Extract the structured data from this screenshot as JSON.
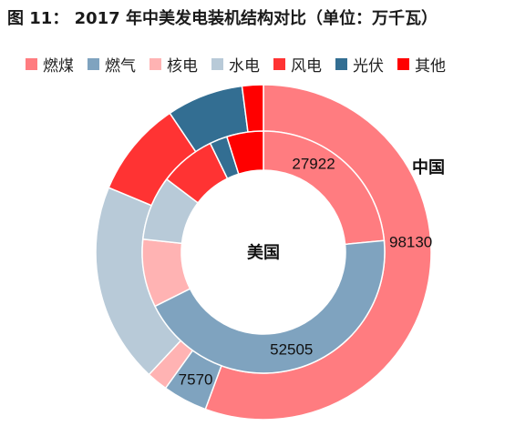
{
  "chart_data": {
    "type": "donut",
    "title": "图 11：  2017 年中美发电装机结构对比（单位：万千瓦）",
    "categories": [
      "燃煤",
      "燃气",
      "核电",
      "水电",
      "风电",
      "光伏",
      "其他"
    ],
    "colors": [
      "#ff7c80",
      "#7fa3bf",
      "#ffb3b3",
      "#b8cad8",
      "#ff3333",
      "#336e92",
      "#ff0000"
    ],
    "series": [
      {
        "name": "中国",
        "ring": "outer",
        "values": [
          98130,
          7570,
          3582,
          34119,
          16367,
          13025,
          3600
        ]
      },
      {
        "name": "美国",
        "ring": "inner",
        "values": [
          27922,
          52505,
          10800,
          10200,
          8900,
          2800,
          5800
        ]
      }
    ],
    "data_labels": [
      {
        "series": 1,
        "category": 0,
        "text": "27922"
      },
      {
        "series": 0,
        "category": 0,
        "text": "98130"
      },
      {
        "series": 1,
        "category": 1,
        "text": "52505"
      },
      {
        "series": 0,
        "category": 1,
        "text": "7570"
      }
    ],
    "legend_position": "top"
  }
}
